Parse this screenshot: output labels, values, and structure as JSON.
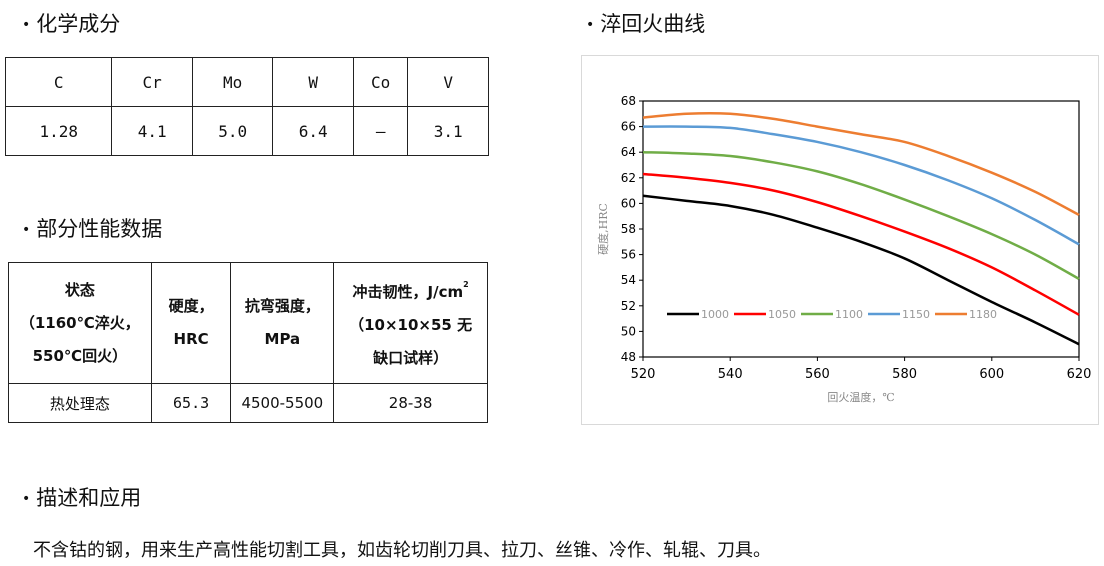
{
  "sections": {
    "chem_title": "化学成分",
    "curve_title": "淬回火曲线",
    "perf_title": "部分性能数据",
    "desc_title": "描述和应用"
  },
  "chemistry": {
    "headers": [
      "C",
      "Cr",
      "Mo",
      "W",
      "Co",
      "V"
    ],
    "values": [
      "1.28",
      "4.1",
      "5.0",
      "6.4",
      "—",
      "3.1"
    ]
  },
  "performance": {
    "state_lines": [
      "状态",
      "（1160℃淬火，",
      "550℃回火）"
    ],
    "hardness_lines": [
      "硬度，",
      "HRC"
    ],
    "bending_lines": [
      "抗弯强度，",
      "MPa"
    ],
    "impact_line1_text": "冲击韧性，J/cm",
    "impact_sup": "2",
    "impact_line2": "（10×10×55 无",
    "impact_line3": "缺口试样）",
    "row_label": "热处理态",
    "row_hardness": "65.3",
    "row_bending": "4500-5500",
    "row_impact": "28-38"
  },
  "description": "不含钴的钢，用来生产高性能切割工具，如齿轮切削刀具、拉刀、丝锥、冷作、轧辊、刀具。",
  "chart_data": {
    "type": "line",
    "xlabel": "回火温度，℃",
    "ylabel": "硬度,HRC",
    "xlim": [
      520,
      620
    ],
    "ylim": [
      48,
      68
    ],
    "xticks": [
      520,
      540,
      560,
      580,
      600,
      620
    ],
    "yticks": [
      48,
      50,
      52,
      54,
      56,
      58,
      60,
      62,
      64,
      66,
      68
    ],
    "legend_position": "bottom-left inside",
    "x": [
      520,
      530,
      540,
      550,
      560,
      570,
      580,
      590,
      600,
      610,
      620
    ],
    "series": [
      {
        "name": "1000",
        "color": "#000000",
        "values": [
          60.6,
          60.2,
          59.8,
          59.1,
          58.1,
          57.0,
          55.7,
          54.0,
          52.3,
          50.7,
          49.0
        ]
      },
      {
        "name": "1050",
        "color": "#ff0000",
        "values": [
          62.3,
          62.0,
          61.6,
          61.0,
          60.1,
          59.0,
          57.8,
          56.5,
          55.0,
          53.2,
          51.3
        ]
      },
      {
        "name": "1100",
        "color": "#70ad47",
        "values": [
          64.0,
          63.9,
          63.7,
          63.2,
          62.5,
          61.5,
          60.3,
          59.0,
          57.6,
          56.0,
          54.1
        ]
      },
      {
        "name": "1150",
        "color": "#5b9bd5",
        "values": [
          66.0,
          66.0,
          65.9,
          65.4,
          64.8,
          64.0,
          63.0,
          61.8,
          60.4,
          58.7,
          56.8
        ]
      },
      {
        "name": "1180",
        "color": "#ed7d31",
        "values": [
          66.7,
          67.0,
          67.0,
          66.6,
          66.0,
          65.4,
          64.8,
          63.7,
          62.4,
          60.9,
          59.1
        ]
      }
    ]
  }
}
